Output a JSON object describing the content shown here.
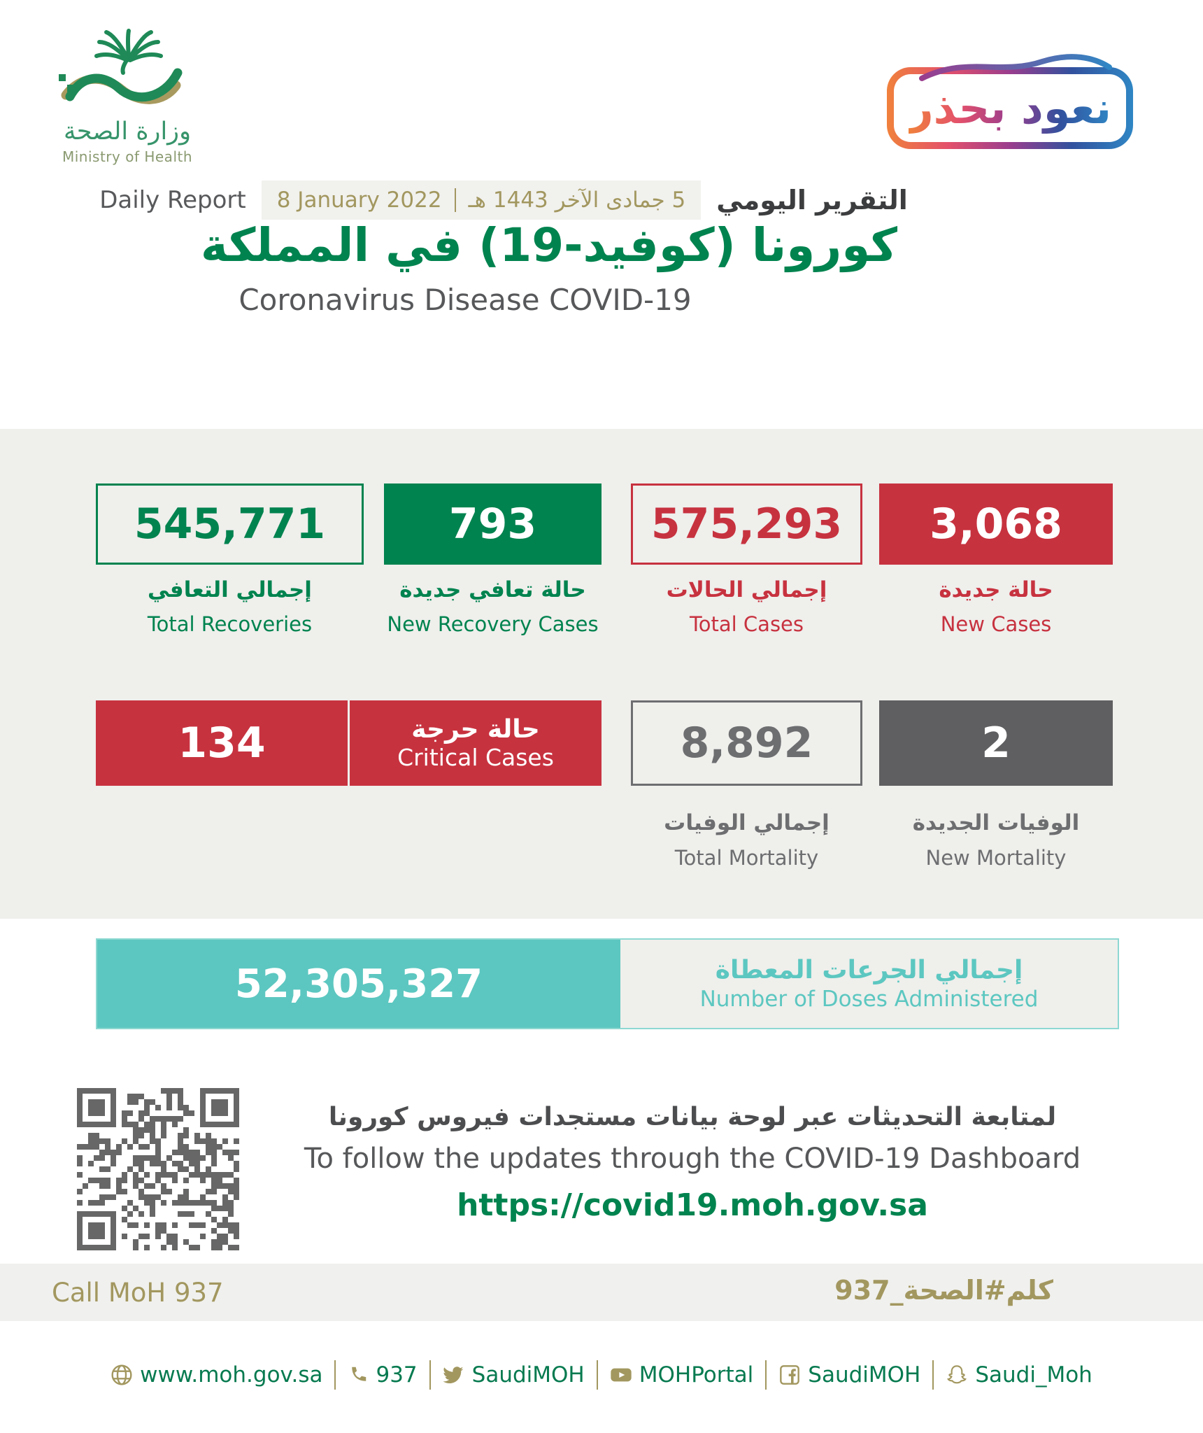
{
  "header": {
    "logo": {
      "arabic": "وزارة الصحة",
      "english": "Ministry of Health"
    },
    "badge_text": "نعود بحذر",
    "report_label_en": "Daily Report",
    "date_en": "8 January 2022",
    "date_hijri": "5 جمادى الآخر 1443 هـ",
    "report_label_ar": "التقرير اليومي",
    "title_ar": "كورونا (كوفيد-19) في المملكة",
    "title_en": "Coronavirus Disease COVID-19"
  },
  "stats": {
    "total_recoveries": {
      "value": "545,771",
      "label_ar": "إجمالي التعافي",
      "label_en": "Total Recoveries"
    },
    "new_recoveries": {
      "value": "793",
      "label_ar": "حالة تعافي جديدة",
      "label_en": "New Recovery Cases"
    },
    "total_cases": {
      "value": "575,293",
      "label_ar": "إجمالي الحالات",
      "label_en": "Total Cases"
    },
    "new_cases": {
      "value": "3,068",
      "label_ar": "حالة جديدة",
      "label_en": "New Cases"
    },
    "critical_cases": {
      "value": "134",
      "label_ar": "حالة حرجة",
      "label_en": "Critical Cases"
    },
    "total_mortality": {
      "value": "8,892",
      "label_ar": "إجمالي الوفيات",
      "label_en": "Total Mortality"
    },
    "new_mortality": {
      "value": "2",
      "label_ar": "الوفيات الجديدة",
      "label_en": "New Mortality"
    },
    "doses": {
      "value": "52,305,327",
      "label_ar": "إجمالي الجرعات المعطاة",
      "label_en": "Number of Doses Administered"
    }
  },
  "dashboard": {
    "line_ar": "لمتابعة التحديثات عبر لوحة بيانات مستجدات فيروس كورونا",
    "line_en": "To follow the updates through the COVID-19 Dashboard",
    "url": "https://covid19.moh.gov.sa"
  },
  "callout": {
    "call_en": "Call MoH 937",
    "call_ar": "كلم#الصحة_937"
  },
  "footer": {
    "items": [
      {
        "icon": "globe-icon",
        "label": "www.moh.gov.sa"
      },
      {
        "icon": "phone-icon",
        "label": "937"
      },
      {
        "icon": "twitter-icon",
        "label": "SaudiMOH"
      },
      {
        "icon": "youtube-icon",
        "label": "MOHPortal"
      },
      {
        "icon": "facebook-icon",
        "label": "SaudiMOH"
      },
      {
        "icon": "snapchat-icon",
        "label": "Saudi_Moh"
      }
    ]
  },
  "colors": {
    "green": "#00834f",
    "red": "#c7323f",
    "dark_gray": "#5f5f61",
    "teal": "#5cc7c0",
    "gold": "#a2975f",
    "band_gray": "#efefec"
  }
}
